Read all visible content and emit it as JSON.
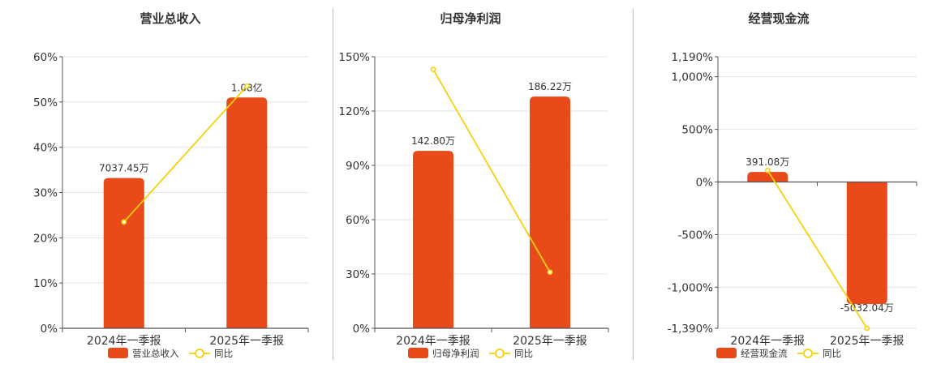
{
  "colors": {
    "bar": "#e84a1a",
    "line": "#f5d10c",
    "grid": "#e6e6e6",
    "axis": "#555555",
    "text": "#333333"
  },
  "chart_data": [
    {
      "type": "bar",
      "title": "营业总收入",
      "categories": [
        "2024年一季报",
        "2025年一季报"
      ],
      "bar_series": {
        "name": "营业总收入",
        "values": [
          33.2,
          51.0
        ],
        "labels": [
          "7037.45万",
          "1.08亿"
        ]
      },
      "line_series": {
        "name": "同比",
        "values": [
          23.5,
          53.5
        ]
      },
      "y_ticks": [
        0,
        10,
        20,
        30,
        40,
        50,
        60
      ],
      "y_tick_labels": [
        "0%",
        "10%",
        "20%",
        "30%",
        "40%",
        "50%",
        "60%"
      ],
      "ylim": [
        0,
        60
      ],
      "legend": "bottom",
      "grid": true
    },
    {
      "type": "bar",
      "title": "归母净利润",
      "categories": [
        "2024年一季报",
        "2025年一季报"
      ],
      "bar_series": {
        "name": "归母净利润",
        "values": [
          98,
          128
        ],
        "labels": [
          "142.80万",
          "186.22万"
        ]
      },
      "line_series": {
        "name": "同比",
        "values": [
          143,
          31
        ]
      },
      "y_ticks": [
        0,
        30,
        60,
        90,
        120,
        150
      ],
      "y_tick_labels": [
        "0%",
        "30%",
        "60%",
        "90%",
        "120%",
        "150%"
      ],
      "ylim": [
        0,
        150
      ],
      "legend": "bottom",
      "grid": true
    },
    {
      "type": "bar",
      "title": "经营现金流",
      "categories": [
        "2024年一季报",
        "2025年一季报"
      ],
      "bar_series": {
        "name": "经营现金流",
        "values": [
          95,
          -1160
        ],
        "labels": [
          "391.08万",
          "-5032.04万"
        ]
      },
      "line_series": {
        "name": "同比",
        "values": [
          110,
          -1390
        ]
      },
      "y_ticks": [
        -1390,
        -1000,
        -500,
        0,
        500,
        1000,
        1190
      ],
      "y_tick_labels": [
        "-1,390%",
        "-1,000%",
        "-500%",
        "0%",
        "500%",
        "1,000%",
        "1,190%"
      ],
      "ylim": [
        -1390,
        1190
      ],
      "legend": "bottom",
      "grid": true
    }
  ]
}
